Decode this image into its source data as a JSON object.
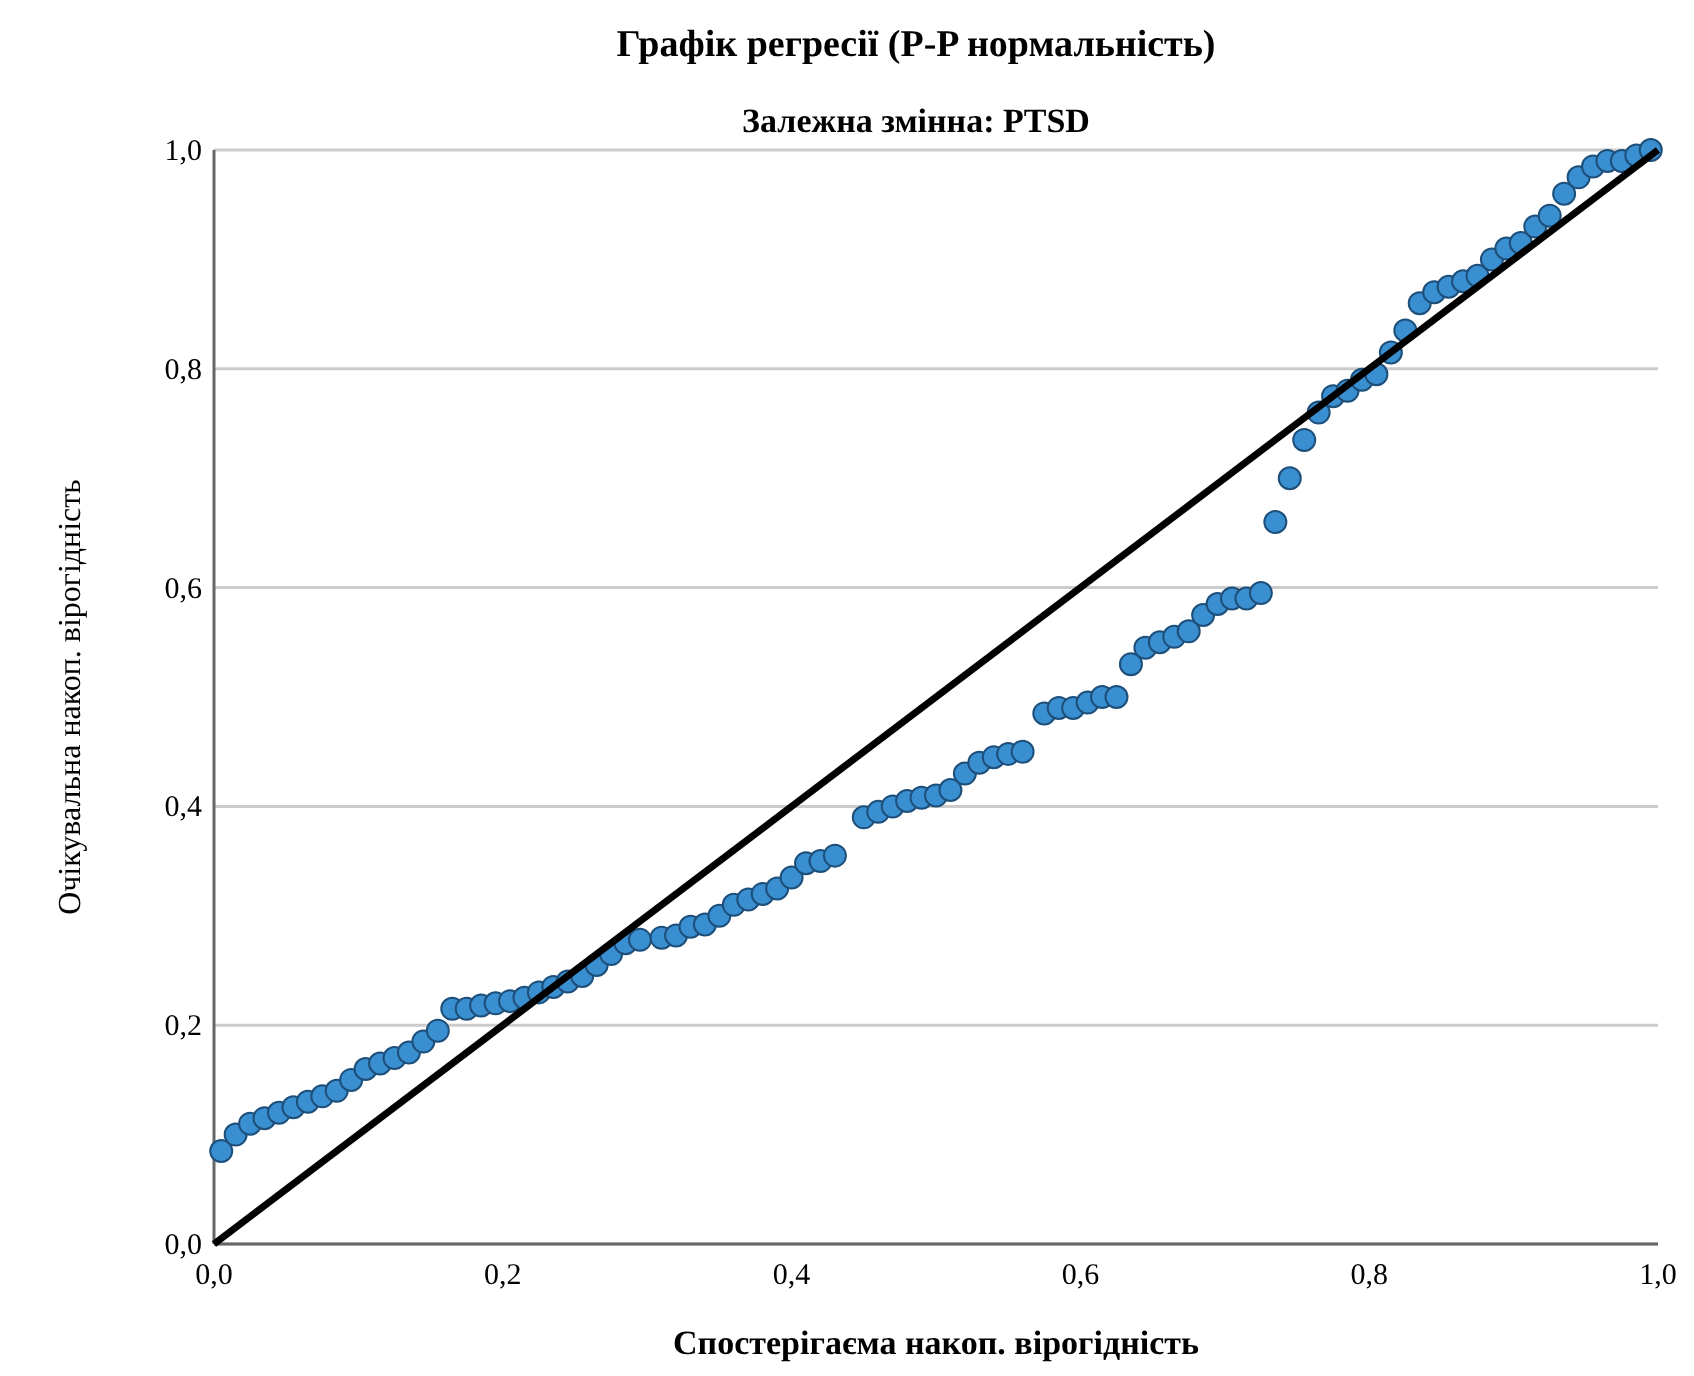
{
  "chart_data": {
    "type": "scatter",
    "title": "Графік регресії (P-P нормальність)",
    "subtitle": "Залежна змінна: PTSD",
    "xlabel": "Спостерігаєма накоп. вірогідність",
    "ylabel": "Очікувальна накоп. вірогідність",
    "xlim": [
      0,
      1
    ],
    "ylim": [
      0,
      1
    ],
    "xticks": [
      {
        "value": 0,
        "label": "0,0"
      },
      {
        "value": 0.2,
        "label": "0,2"
      },
      {
        "value": 0.4,
        "label": "0,4"
      },
      {
        "value": 0.6,
        "label": "0,6"
      },
      {
        "value": 0.8,
        "label": "0,8"
      },
      {
        "value": 1,
        "label": "1,0"
      }
    ],
    "yticks": [
      {
        "value": 0,
        "label": "0,0"
      },
      {
        "value": 0.2,
        "label": "0,2"
      },
      {
        "value": 0.4,
        "label": "0,4"
      },
      {
        "value": 0.6,
        "label": "0,6"
      },
      {
        "value": 0.8,
        "label": "0,8"
      },
      {
        "value": 1,
        "label": "1,0"
      }
    ],
    "grid": "y",
    "series": [
      {
        "marker": "circle",
        "color": "#3a8fd0",
        "x": [
          0.005,
          0.015,
          0.025,
          0.035,
          0.045,
          0.055,
          0.065,
          0.075,
          0.085,
          0.095,
          0.105,
          0.115,
          0.125,
          0.135,
          0.145,
          0.155,
          0.165,
          0.175,
          0.185,
          0.195,
          0.205,
          0.215,
          0.225,
          0.235,
          0.245,
          0.255,
          0.265,
          0.275,
          0.285,
          0.295,
          0.31,
          0.32,
          0.33,
          0.34,
          0.35,
          0.36,
          0.37,
          0.38,
          0.39,
          0.4,
          0.41,
          0.42,
          0.43,
          0.45,
          0.46,
          0.47,
          0.48,
          0.49,
          0.5,
          0.51,
          0.52,
          0.53,
          0.54,
          0.55,
          0.56,
          0.575,
          0.585,
          0.595,
          0.605,
          0.615,
          0.625,
          0.635,
          0.645,
          0.655,
          0.665,
          0.675,
          0.685,
          0.695,
          0.705,
          0.715,
          0.725,
          0.735,
          0.745,
          0.755,
          0.765,
          0.775,
          0.785,
          0.795,
          0.805,
          0.815,
          0.825,
          0.835,
          0.845,
          0.855,
          0.865,
          0.875,
          0.885,
          0.895,
          0.905,
          0.915,
          0.925,
          0.935,
          0.945,
          0.955,
          0.965,
          0.975,
          0.985,
          0.995
        ],
        "values": [
          0.085,
          0.1,
          0.11,
          0.115,
          0.12,
          0.125,
          0.13,
          0.135,
          0.14,
          0.15,
          0.16,
          0.165,
          0.17,
          0.175,
          0.185,
          0.195,
          0.215,
          0.215,
          0.218,
          0.22,
          0.222,
          0.225,
          0.23,
          0.235,
          0.24,
          0.245,
          0.255,
          0.265,
          0.275,
          0.278,
          0.28,
          0.282,
          0.29,
          0.292,
          0.3,
          0.31,
          0.315,
          0.32,
          0.325,
          0.335,
          0.348,
          0.35,
          0.355,
          0.39,
          0.395,
          0.4,
          0.405,
          0.408,
          0.41,
          0.415,
          0.43,
          0.44,
          0.445,
          0.448,
          0.45,
          0.485,
          0.49,
          0.49,
          0.495,
          0.5,
          0.5,
          0.53,
          0.545,
          0.55,
          0.555,
          0.56,
          0.575,
          0.585,
          0.59,
          0.59,
          0.595,
          0.66,
          0.7,
          0.735,
          0.76,
          0.775,
          0.78,
          0.79,
          0.795,
          0.815,
          0.835,
          0.86,
          0.87,
          0.875,
          0.88,
          0.885,
          0.9,
          0.91,
          0.915,
          0.93,
          0.94,
          0.96,
          0.975,
          0.985,
          0.99,
          0.99,
          0.995,
          1.0
        ]
      },
      {
        "type": "line",
        "color": "#000000",
        "line_style": "solid",
        "x": [
          0,
          1
        ],
        "values": [
          0,
          1
        ]
      }
    ]
  }
}
